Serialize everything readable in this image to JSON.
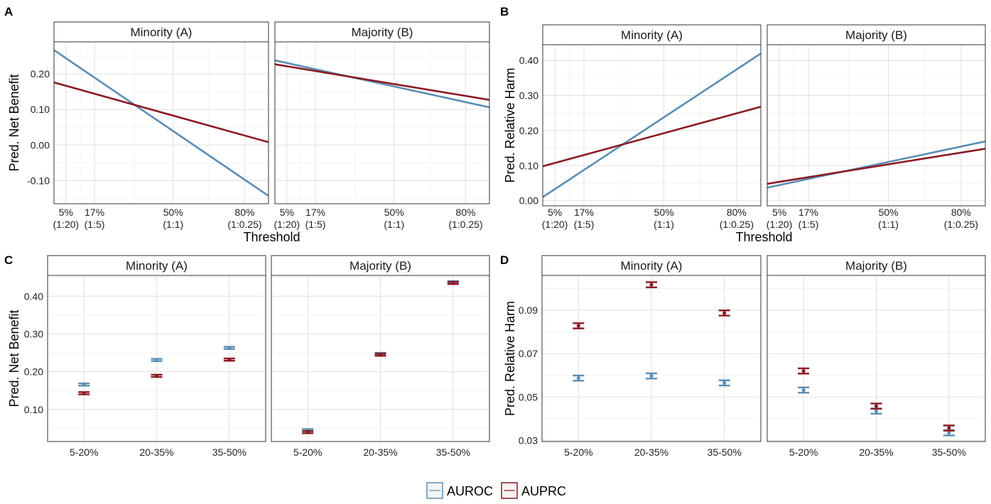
{
  "colors": {
    "auroc": "#5b8db4",
    "auprc": "#8b1a24",
    "grid": "#e3e3e3",
    "strip_bg": "#ffffff",
    "border": "#333333"
  },
  "legend": {
    "items": [
      "AUROC",
      "AUPRC"
    ]
  },
  "chart_data": [
    {
      "type": "line",
      "panel_label": "A",
      "facets": [
        "Minority (A)",
        "Majority (B)"
      ],
      "xlabel": "Threshold",
      "ylabel": "Pred. Net Benefit",
      "xlim": [
        0,
        0.9
      ],
      "ylim": [
        -0.165,
        0.29
      ],
      "xticks": [
        0.05,
        0.17,
        0.5,
        0.8
      ],
      "xticklabels": [
        [
          "5%",
          "(1:20)"
        ],
        [
          "17%",
          "(1:5)"
        ],
        [
          "50%",
          "(1:1)"
        ],
        [
          "80%",
          "(1:0.25)"
        ]
      ],
      "yticks": [
        -0.1,
        0.0,
        0.1,
        0.2
      ],
      "yticklabels": [
        "-0.10",
        "0.00",
        "0.10",
        "0.20"
      ],
      "grid": true,
      "series": [
        {
          "name": "AUROC",
          "facet": "Minority (A)",
          "x": [
            0,
            0.9
          ],
          "y": [
            0.267,
            -0.143
          ]
        },
        {
          "name": "AUPRC",
          "facet": "Minority (A)",
          "x": [
            0,
            0.9
          ],
          "y": [
            0.176,
            0.008
          ]
        },
        {
          "name": "AUROC",
          "facet": "Majority (B)",
          "x": [
            0,
            0.9
          ],
          "y": [
            0.238,
            0.106
          ]
        },
        {
          "name": "AUPRC",
          "facet": "Majority (B)",
          "x": [
            0,
            0.9
          ],
          "y": [
            0.227,
            0.127
          ]
        }
      ]
    },
    {
      "type": "line",
      "panel_label": "B",
      "facets": [
        "Minority (A)",
        "Majority (B)"
      ],
      "xlabel": "Threshold",
      "ylabel": "Pred. Relative Harm",
      "xlim": [
        0,
        0.9
      ],
      "ylim": [
        -0.015,
        0.445
      ],
      "xticks": [
        0.05,
        0.17,
        0.5,
        0.8
      ],
      "xticklabels": [
        [
          "5%",
          "(1:20)"
        ],
        [
          "17%",
          "(1:5)"
        ],
        [
          "50%",
          "(1:1)"
        ],
        [
          "80%",
          "(1:0.25)"
        ]
      ],
      "yticks": [
        0.0,
        0.1,
        0.2,
        0.3,
        0.4
      ],
      "yticklabels": [
        "0.00",
        "0.10",
        "0.20",
        "0.30",
        "0.40"
      ],
      "grid": true,
      "series": [
        {
          "name": "AUROC",
          "facet": "Minority (A)",
          "x": [
            0,
            0.9
          ],
          "y": [
            0.01,
            0.42
          ]
        },
        {
          "name": "AUPRC",
          "facet": "Minority (A)",
          "x": [
            0,
            0.9
          ],
          "y": [
            0.098,
            0.268
          ]
        },
        {
          "name": "AUROC",
          "facet": "Majority (B)",
          "x": [
            0,
            0.9
          ],
          "y": [
            0.037,
            0.169
          ]
        },
        {
          "name": "AUPRC",
          "facet": "Majority (B)",
          "x": [
            0,
            0.9
          ],
          "y": [
            0.048,
            0.148
          ]
        }
      ]
    },
    {
      "type": "scatter",
      "panel_label": "C",
      "facets": [
        "Minority (A)",
        "Majority (B)"
      ],
      "xlabel": "",
      "ylabel": "Pred. Net Benefit",
      "categories": [
        "5-20%",
        "20-35%",
        "35-50%"
      ],
      "ylim": [
        0.015,
        0.455
      ],
      "yticks": [
        0.1,
        0.2,
        0.3,
        0.4
      ],
      "yticklabels": [
        "0.10",
        "0.20",
        "0.30",
        "0.40"
      ],
      "grid": true,
      "series": [
        {
          "name": "AUROC",
          "facet": "Minority (A)",
          "values": [
            0.166,
            0.231,
            0.263
          ],
          "lower": [
            0.163,
            0.228,
            0.26
          ],
          "upper": [
            0.169,
            0.234,
            0.266
          ]
        },
        {
          "name": "AUPRC",
          "facet": "Minority (A)",
          "values": [
            0.143,
            0.189,
            0.232
          ],
          "lower": [
            0.14,
            0.186,
            0.229
          ],
          "upper": [
            0.146,
            0.192,
            0.235
          ]
        },
        {
          "name": "AUROC",
          "facet": "Majority (B)",
          "values": [
            0.045,
            0.247,
            0.437
          ],
          "lower": [
            0.042,
            0.244,
            0.434
          ],
          "upper": [
            0.048,
            0.25,
            0.44
          ]
        },
        {
          "name": "AUPRC",
          "facet": "Majority (B)",
          "values": [
            0.04,
            0.245,
            0.435
          ],
          "lower": [
            0.037,
            0.242,
            0.432
          ],
          "upper": [
            0.043,
            0.248,
            0.438
          ]
        }
      ]
    },
    {
      "type": "scatter",
      "panel_label": "D",
      "facets": [
        "Minority (A)",
        "Majority (B)"
      ],
      "xlabel": "",
      "ylabel": "Pred. Relative Harm",
      "categories": [
        "5-20%",
        "20-35%",
        "35-50%"
      ],
      "ylim": [
        0.0295,
        0.106
      ],
      "yticks": [
        0.03,
        0.05,
        0.07,
        0.09
      ],
      "yticklabels": [
        "0.03",
        "0.05",
        "0.07",
        "0.09"
      ],
      "grid": true,
      "series": [
        {
          "name": "AUROC",
          "facet": "Minority (A)",
          "values": [
            0.0587,
            0.0597,
            0.0565
          ],
          "lower": [
            0.0575,
            0.0585,
            0.0553
          ],
          "upper": [
            0.0599,
            0.0609,
            0.0577
          ]
        },
        {
          "name": "AUPRC",
          "facet": "Minority (A)",
          "values": [
            0.0828,
            0.1017,
            0.0887
          ],
          "lower": [
            0.0816,
            0.1005,
            0.0875
          ],
          "upper": [
            0.084,
            0.1029,
            0.0899
          ]
        },
        {
          "name": "AUROC",
          "facet": "Majority (B)",
          "values": [
            0.0532,
            0.0435,
            0.0335
          ],
          "lower": [
            0.052,
            0.0423,
            0.0323
          ],
          "upper": [
            0.0544,
            0.0447,
            0.0347
          ]
        },
        {
          "name": "AUPRC",
          "facet": "Majority (B)",
          "values": [
            0.062,
            0.0458,
            0.0357
          ],
          "lower": [
            0.0608,
            0.0446,
            0.0345
          ],
          "upper": [
            0.0632,
            0.047,
            0.0369
          ]
        }
      ]
    }
  ]
}
